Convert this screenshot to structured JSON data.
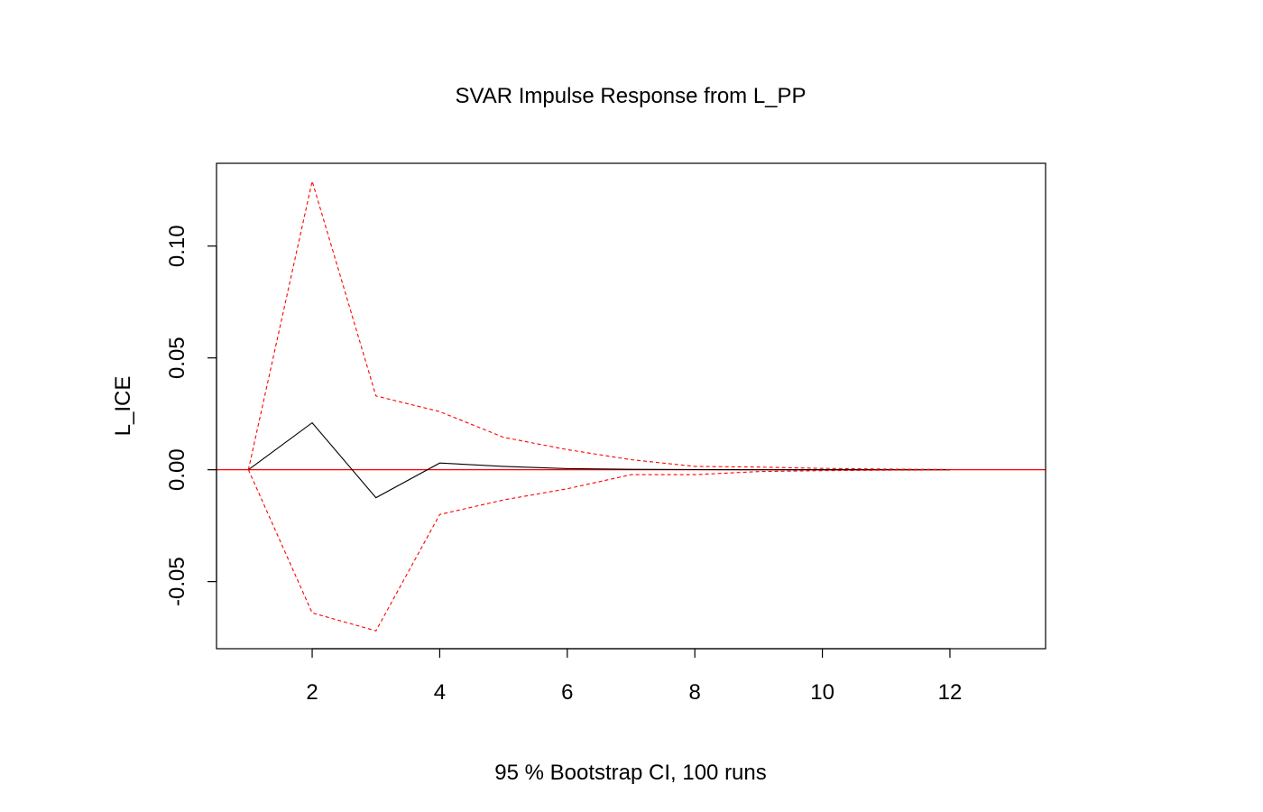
{
  "chart_data": {
    "type": "line",
    "title": "SVAR Impulse Response from L_PP",
    "ylabel": "L_ICE",
    "xlabel": "95 % Bootstrap CI,  100 runs",
    "xlim": [
      0.5,
      13.5
    ],
    "ylim": [
      -0.08,
      0.137
    ],
    "x_ticks": [
      2,
      4,
      6,
      8,
      10,
      12
    ],
    "y_ticks": [
      -0.05,
      0.0,
      0.05,
      0.1
    ],
    "x_tick_labels": [
      "2",
      "4",
      "6",
      "8",
      "10",
      "12"
    ],
    "y_tick_labels": [
      "-0.05",
      "0.00",
      "0.05",
      "0.10"
    ],
    "grid": false,
    "legend": "none",
    "series": [
      {
        "role": "response",
        "color": "#000000",
        "dashed": false,
        "x": [
          1,
          2,
          3,
          4,
          5,
          6,
          7,
          8,
          9,
          10,
          11,
          12
        ],
        "values": [
          0.0,
          0.021,
          -0.0125,
          0.003,
          0.0015,
          0.0005,
          0.0002,
          0.0001,
          0.0,
          0.0,
          0.0,
          0.0
        ]
      },
      {
        "role": "upper-ci",
        "color": "#ff0000",
        "dashed": true,
        "x": [
          1,
          2,
          3,
          4,
          5,
          6,
          7,
          8,
          9,
          10,
          11,
          12
        ],
        "values": [
          0.0,
          0.129,
          0.033,
          0.026,
          0.0145,
          0.009,
          0.0045,
          0.0015,
          0.0012,
          0.0006,
          0.0003,
          0.0001
        ]
      },
      {
        "role": "lower-ci",
        "color": "#ff0000",
        "dashed": true,
        "x": [
          1,
          2,
          3,
          4,
          5,
          6,
          7,
          8,
          9,
          10,
          11,
          12
        ],
        "values": [
          0.0,
          -0.064,
          -0.072,
          -0.02,
          -0.0135,
          -0.0085,
          -0.0022,
          -0.0022,
          -0.0008,
          -0.0004,
          -0.0002,
          -0.0001
        ]
      }
    ],
    "reference_line": {
      "y": 0.0,
      "color": "#ff0000"
    }
  }
}
